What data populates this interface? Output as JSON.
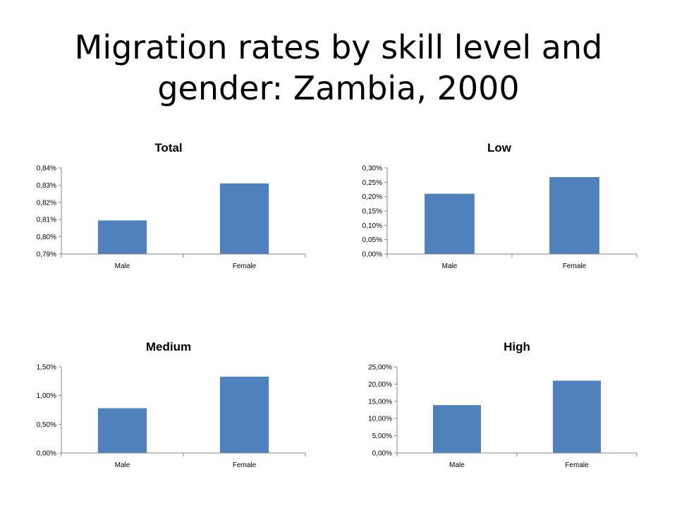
{
  "title_lines": [
    "Migration rates by skill level and",
    "gender: Zambia, 2000"
  ],
  "chart_data": [
    {
      "type": "bar",
      "title": "Total",
      "categories": [
        "Male",
        "Female"
      ],
      "values": [
        0.8095,
        0.831
      ],
      "ylim": [
        0.79,
        0.84
      ],
      "yticks": [
        0.79,
        0.8,
        0.81,
        0.82,
        0.83,
        0.84
      ],
      "ytick_labels": [
        "0,79%",
        "0,80%",
        "0,81%",
        "0,82%",
        "0,83%",
        "0,84%"
      ],
      "unit": "%",
      "color": "#4f81bd",
      "grid": false,
      "legend": "none"
    },
    {
      "type": "bar",
      "title": "Low",
      "categories": [
        "Male",
        "Female"
      ],
      "values": [
        0.21,
        0.268
      ],
      "ylim": [
        0,
        0.3
      ],
      "yticks": [
        0,
        0.05,
        0.1,
        0.15,
        0.2,
        0.25,
        0.3
      ],
      "ytick_labels": [
        "0,00%",
        "0,05%",
        "0,10%",
        "0,15%",
        "0,20%",
        "0,25%",
        "0,30%"
      ],
      "unit": "%",
      "color": "#4f81bd",
      "grid": false,
      "legend": "none"
    },
    {
      "type": "bar",
      "title": "Medium",
      "categories": [
        "Male",
        "Female"
      ],
      "values": [
        0.78,
        1.33
      ],
      "ylim": [
        0,
        1.5
      ],
      "yticks": [
        0,
        0.5,
        1.0,
        1.5
      ],
      "ytick_labels": [
        "0,00%",
        "0,50%",
        "1,00%",
        "1,50%"
      ],
      "unit": "%",
      "color": "#4f81bd",
      "grid": false,
      "legend": "none"
    },
    {
      "type": "bar",
      "title": "High",
      "categories": [
        "Male",
        "Female"
      ],
      "values": [
        13.9,
        21.0
      ],
      "ylim": [
        0,
        25
      ],
      "yticks": [
        0,
        5,
        10,
        15,
        20,
        25
      ],
      "ytick_labels": [
        "0,00%",
        "5,00%",
        "10,00%",
        "15,00%",
        "20,00%",
        "25,00%"
      ],
      "unit": "%",
      "color": "#4f81bd",
      "grid": false,
      "legend": "none"
    }
  ]
}
